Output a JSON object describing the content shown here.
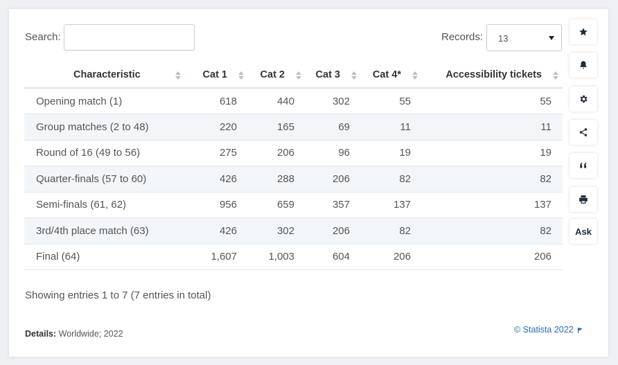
{
  "search": {
    "label": "Search:",
    "value": "",
    "placeholder": ""
  },
  "records": {
    "label": "Records:",
    "value": "13"
  },
  "table": {
    "headers": [
      "Characteristic",
      "Cat 1",
      "Cat 2",
      "Cat 3",
      "Cat 4*",
      "Accessibility tickets"
    ],
    "rows": [
      [
        "Opening match (1)",
        "618",
        "440",
        "302",
        "55",
        "55"
      ],
      [
        "Group matches (2 to 48)",
        "220",
        "165",
        "69",
        "11",
        "11"
      ],
      [
        "Round of 16 (49 to 56)",
        "275",
        "206",
        "96",
        "19",
        "19"
      ],
      [
        "Quarter-finals (57 to 60)",
        "426",
        "288",
        "206",
        "82",
        "82"
      ],
      [
        "Semi-finals (61, 62)",
        "956",
        "659",
        "357",
        "137",
        "137"
      ],
      [
        "3rd/4th place match (63)",
        "426",
        "302",
        "206",
        "82",
        "82"
      ],
      [
        "Final (64)",
        "1,607",
        "1,003",
        "604",
        "206",
        "206"
      ]
    ]
  },
  "footer": {
    "showing": "Showing entries 1 to 7 (7 entries in total)",
    "details_label": "Details:",
    "details_value": "Worldwide; 2022",
    "copyright": "© Statista 2022"
  },
  "sidebar": {
    "icons": [
      "star-icon",
      "bell-icon",
      "gear-icon",
      "share-icon",
      "quote-icon",
      "print-icon"
    ],
    "ask_label": "Ask"
  },
  "colors": {
    "accent": "#2a6cb3",
    "stripe": "#f3f6f9",
    "icon": "#1f2b3a"
  }
}
